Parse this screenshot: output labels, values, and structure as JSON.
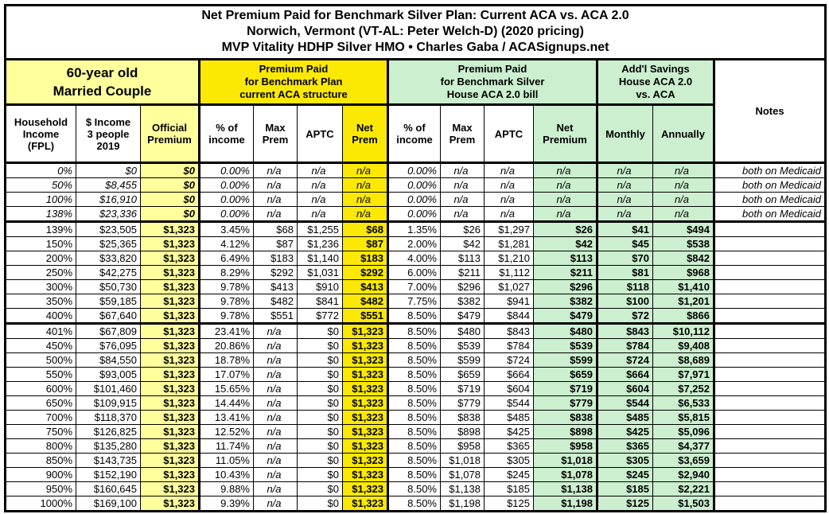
{
  "title_lines": [
    "Net Premium Paid for Benchmark Silver Plan: Current ACA vs. ACA 2.0",
    "Norwich, Vermont (VT-AL: Peter Welch-D) (2020 pricing)",
    "MVP Vitality HDHP Silver HMO • Charles Gaba / ACASignups.net"
  ],
  "colors": {
    "light_yellow": "#FFFF9C",
    "bright_yellow": "#FBE903",
    "light_green": "#CCEFCF",
    "border": "#000000"
  },
  "group_headers": {
    "household": "60-year old\nMarried Couple",
    "aca": "Premium Paid\nfor Benchmark Plan\ncurrent ACA structure",
    "aca2": "Premium Paid\nfor Benchmark Silver\nHouse ACA 2.0 bill",
    "savings": "Add'l Savings\nHouse ACA 2.0\nvs. ACA",
    "notes": "Notes"
  },
  "column_headers": [
    "Household\nIncome\n(FPL)",
    "$ Income\n3 people\n2019",
    "Official\nPremium",
    "% of\nincome",
    "Max\nPrem",
    "APTC",
    "Net\nPrem",
    "% of\nincome",
    "Max\nPrem",
    "APTC",
    "Net\nPremium",
    "Monthly",
    "Annually"
  ],
  "chart_data": {
    "type": "table",
    "title": "Net Premium Paid for Benchmark Silver Plan: Current ACA vs. ACA 2.0",
    "columns": [
      "Household Income (FPL)",
      "$ Income 3 people 2019",
      "Official Premium",
      "ACA % of income",
      "ACA Max Prem",
      "ACA APTC",
      "ACA Net Prem",
      "ACA 2.0 % of income",
      "ACA 2.0 Max Prem",
      "ACA 2.0 APTC",
      "ACA 2.0 Net Premium",
      "Savings Monthly",
      "Savings Annually",
      "Notes"
    ],
    "rows": [
      [
        "0%",
        "$0",
        "$0",
        "0.00%",
        "n/a",
        "n/a",
        "n/a",
        "0.00%",
        "n/a",
        "n/a",
        "n/a",
        "n/a",
        "n/a",
        "both on Medicaid"
      ],
      [
        "50%",
        "$8,455",
        "$0",
        "0.00%",
        "n/a",
        "n/a",
        "n/a",
        "0.00%",
        "n/a",
        "n/a",
        "n/a",
        "n/a",
        "n/a",
        "both on Medicaid"
      ],
      [
        "100%",
        "$16,910",
        "$0",
        "0.00%",
        "n/a",
        "n/a",
        "n/a",
        "0.00%",
        "n/a",
        "n/a",
        "n/a",
        "n/a",
        "n/a",
        "both on Medicaid"
      ],
      [
        "138%",
        "$23,336",
        "$0",
        "0.00%",
        "n/a",
        "n/a",
        "n/a",
        "0.00%",
        "n/a",
        "n/a",
        "n/a",
        "n/a",
        "n/a",
        "both on Medicaid"
      ],
      [
        "139%",
        "$23,505",
        "$1,323",
        "3.45%",
        "$68",
        "$1,255",
        "$68",
        "1.35%",
        "$26",
        "$1,297",
        "$26",
        "$41",
        "$494",
        ""
      ],
      [
        "150%",
        "$25,365",
        "$1,323",
        "4.12%",
        "$87",
        "$1,236",
        "$87",
        "2.00%",
        "$42",
        "$1,281",
        "$42",
        "$45",
        "$538",
        ""
      ],
      [
        "200%",
        "$33,820",
        "$1,323",
        "6.49%",
        "$183",
        "$1,140",
        "$183",
        "4.00%",
        "$113",
        "$1,210",
        "$113",
        "$70",
        "$842",
        ""
      ],
      [
        "250%",
        "$42,275",
        "$1,323",
        "8.29%",
        "$292",
        "$1,031",
        "$292",
        "6.00%",
        "$211",
        "$1,112",
        "$211",
        "$81",
        "$968",
        ""
      ],
      [
        "300%",
        "$50,730",
        "$1,323",
        "9.78%",
        "$413",
        "$910",
        "$413",
        "7.00%",
        "$296",
        "$1,027",
        "$296",
        "$118",
        "$1,410",
        ""
      ],
      [
        "350%",
        "$59,185",
        "$1,323",
        "9.78%",
        "$482",
        "$841",
        "$482",
        "7.75%",
        "$382",
        "$941",
        "$382",
        "$100",
        "$1,201",
        ""
      ],
      [
        "400%",
        "$67,640",
        "$1,323",
        "9.78%",
        "$551",
        "$772",
        "$551",
        "8.50%",
        "$479",
        "$844",
        "$479",
        "$72",
        "$866",
        ""
      ],
      [
        "401%",
        "$67,809",
        "$1,323",
        "23.41%",
        "n/a",
        "$0",
        "$1,323",
        "8.50%",
        "$480",
        "$843",
        "$480",
        "$843",
        "$10,112",
        ""
      ],
      [
        "450%",
        "$76,095",
        "$1,323",
        "20.86%",
        "n/a",
        "$0",
        "$1,323",
        "8.50%",
        "$539",
        "$784",
        "$539",
        "$784",
        "$9,408",
        ""
      ],
      [
        "500%",
        "$84,550",
        "$1,323",
        "18.78%",
        "n/a",
        "$0",
        "$1,323",
        "8.50%",
        "$599",
        "$724",
        "$599",
        "$724",
        "$8,689",
        ""
      ],
      [
        "550%",
        "$93,005",
        "$1,323",
        "17.07%",
        "n/a",
        "$0",
        "$1,323",
        "8.50%",
        "$659",
        "$664",
        "$659",
        "$664",
        "$7,971",
        ""
      ],
      [
        "600%",
        "$101,460",
        "$1,323",
        "15.65%",
        "n/a",
        "$0",
        "$1,323",
        "8.50%",
        "$719",
        "$604",
        "$719",
        "$604",
        "$7,252",
        ""
      ],
      [
        "650%",
        "$109,915",
        "$1,323",
        "14.44%",
        "n/a",
        "$0",
        "$1,323",
        "8.50%",
        "$779",
        "$544",
        "$779",
        "$544",
        "$6,533",
        ""
      ],
      [
        "700%",
        "$118,370",
        "$1,323",
        "13.41%",
        "n/a",
        "$0",
        "$1,323",
        "8.50%",
        "$838",
        "$485",
        "$838",
        "$485",
        "$5,815",
        ""
      ],
      [
        "750%",
        "$126,825",
        "$1,323",
        "12.52%",
        "n/a",
        "$0",
        "$1,323",
        "8.50%",
        "$898",
        "$425",
        "$898",
        "$425",
        "$5,096",
        ""
      ],
      [
        "800%",
        "$135,280",
        "$1,323",
        "11.74%",
        "n/a",
        "$0",
        "$1,323",
        "8.50%",
        "$958",
        "$365",
        "$958",
        "$365",
        "$4,377",
        ""
      ],
      [
        "850%",
        "$143,735",
        "$1,323",
        "11.05%",
        "n/a",
        "$0",
        "$1,323",
        "8.50%",
        "$1,018",
        "$305",
        "$1,018",
        "$305",
        "$3,659",
        ""
      ],
      [
        "900%",
        "$152,190",
        "$1,323",
        "10.43%",
        "n/a",
        "$0",
        "$1,323",
        "8.50%",
        "$1,078",
        "$245",
        "$1,078",
        "$245",
        "$2,940",
        ""
      ],
      [
        "950%",
        "$160,645",
        "$1,323",
        "9.88%",
        "n/a",
        "$0",
        "$1,323",
        "8.50%",
        "$1,138",
        "$185",
        "$1,138",
        "$185",
        "$2,221",
        ""
      ],
      [
        "1000%",
        "$169,100",
        "$1,323",
        "9.39%",
        "n/a",
        "$0",
        "$1,323",
        "8.50%",
        "$1,198",
        "$125",
        "$1,198",
        "$125",
        "$1,503",
        ""
      ]
    ]
  }
}
